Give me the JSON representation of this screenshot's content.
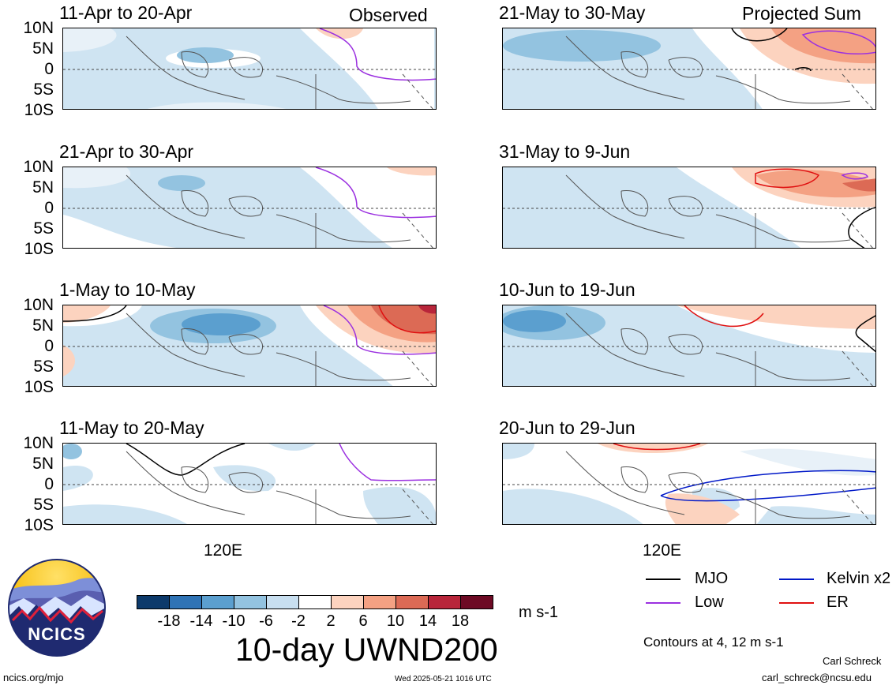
{
  "variable_title": "10-day UWND200",
  "units": "m s-1",
  "headers": {
    "left": "Observed",
    "right": "Projected Sum"
  },
  "lat_labels": [
    "10N",
    "5N",
    "0",
    "5S",
    "10S"
  ],
  "lon_label": "120E",
  "panels": {
    "obs": [
      "11-Apr to 20-Apr",
      "21-Apr to 30-Apr",
      "1-May to 10-May",
      "11-May to 20-May"
    ],
    "proj": [
      "21-May to 30-May",
      "31-May to 9-Jun",
      "10-Jun to 19-Jun",
      "20-Jun to 29-Jun"
    ]
  },
  "colorbar": {
    "ticks": [
      "-18",
      "-14",
      "-10",
      "-6",
      "-2",
      "2",
      "6",
      "10",
      "14",
      "18"
    ],
    "colors": [
      "#0d3a6b",
      "#2f73b5",
      "#5b9fcf",
      "#93c3e0",
      "#c8dff0",
      "#ffffff",
      "#fcd3bf",
      "#f4a183",
      "#dc6a55",
      "#b8253a",
      "#6d0a24"
    ]
  },
  "legend": {
    "items": [
      {
        "label": "MJO",
        "color": "#000000"
      },
      {
        "label": "Kelvin x2",
        "color": "#0018c8"
      },
      {
        "label": "Low",
        "color": "#9b30e0"
      },
      {
        "label": "ER",
        "color": "#e01010"
      }
    ],
    "contours_note": "Contours at 4, 12 m s-1"
  },
  "logo_text": "NCICS",
  "footer": {
    "left": "ncics.org/mjo",
    "center": "Wed 2025-05-21 1016 UTC",
    "author": "Carl Schreck",
    "email": "carl_schreck@ncsu.edu"
  }
}
